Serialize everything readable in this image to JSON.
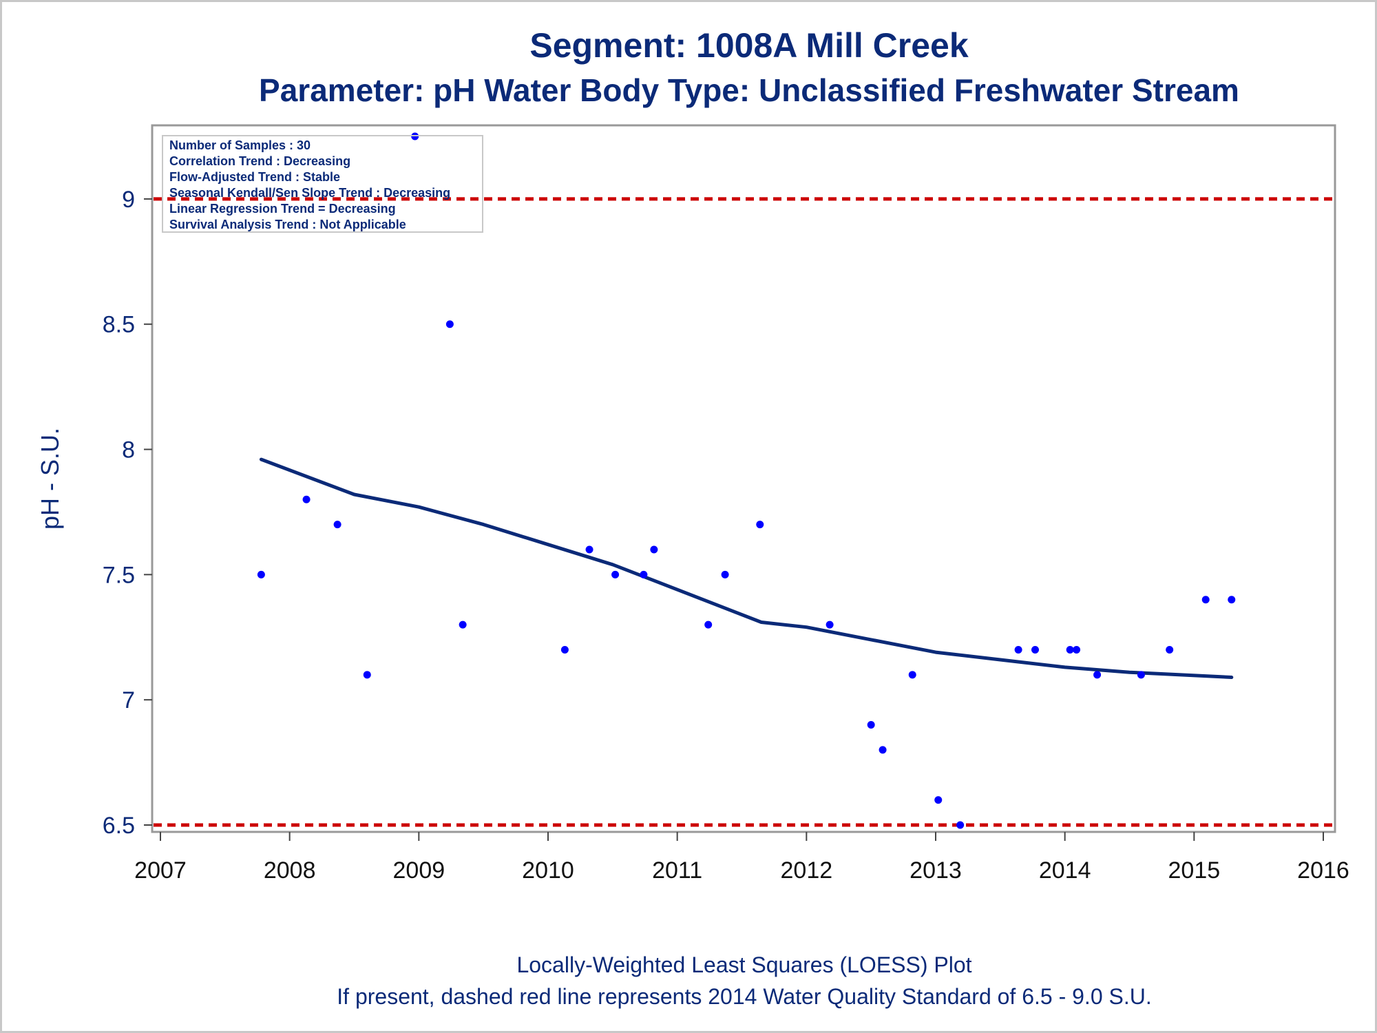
{
  "chart_data": {
    "type": "scatter",
    "title": "Segment: 1008A  Mill Creek",
    "subtitle": "Parameter: pH   Water Body Type: Unclassified Freshwater Stream",
    "xlabel": "",
    "ylabel": "pH - S.U.",
    "xlim": [
      2007,
      2016
    ],
    "ylim": [
      6.5,
      9.25
    ],
    "xticks": [
      "2007",
      "2008",
      "2009",
      "2010",
      "2011",
      "2012",
      "2013",
      "2014",
      "2015",
      "2016"
    ],
    "yticks": [
      "6.5",
      "7",
      "7.5",
      "8",
      "8.5",
      "9"
    ],
    "grid": false,
    "colors": {
      "points": "#0000ff",
      "loess": "#0b2a78",
      "standard": "#cc0000",
      "text": "#0b2a78"
    },
    "standards": [
      6.5,
      9.0
    ],
    "points": [
      {
        "x": 2007.78,
        "y": 7.5
      },
      {
        "x": 2008.13,
        "y": 7.8
      },
      {
        "x": 2008.37,
        "y": 7.7
      },
      {
        "x": 2008.6,
        "y": 7.1
      },
      {
        "x": 2008.97,
        "y": 9.25
      },
      {
        "x": 2009.24,
        "y": 8.5
      },
      {
        "x": 2009.34,
        "y": 7.3
      },
      {
        "x": 2010.13,
        "y": 7.2
      },
      {
        "x": 2010.32,
        "y": 7.6
      },
      {
        "x": 2010.52,
        "y": 7.5
      },
      {
        "x": 2010.74,
        "y": 7.5
      },
      {
        "x": 2010.82,
        "y": 7.6
      },
      {
        "x": 2011.24,
        "y": 7.3
      },
      {
        "x": 2011.37,
        "y": 7.5
      },
      {
        "x": 2011.64,
        "y": 7.7
      },
      {
        "x": 2012.18,
        "y": 7.3
      },
      {
        "x": 2012.5,
        "y": 6.9
      },
      {
        "x": 2012.59,
        "y": 6.8
      },
      {
        "x": 2012.82,
        "y": 7.1
      },
      {
        "x": 2013.02,
        "y": 6.6
      },
      {
        "x": 2013.19,
        "y": 6.5
      },
      {
        "x": 2013.64,
        "y": 7.2
      },
      {
        "x": 2013.77,
        "y": 7.2
      },
      {
        "x": 2014.04,
        "y": 7.2
      },
      {
        "x": 2014.09,
        "y": 7.2
      },
      {
        "x": 2014.25,
        "y": 7.1
      },
      {
        "x": 2014.59,
        "y": 7.1
      },
      {
        "x": 2014.81,
        "y": 7.2
      },
      {
        "x": 2015.09,
        "y": 7.4
      },
      {
        "x": 2015.29,
        "y": 7.4
      }
    ],
    "loess": [
      {
        "x": 2007.78,
        "y": 7.96
      },
      {
        "x": 2008.5,
        "y": 7.82
      },
      {
        "x": 2009.0,
        "y": 7.77
      },
      {
        "x": 2009.5,
        "y": 7.7
      },
      {
        "x": 2010.0,
        "y": 7.62
      },
      {
        "x": 2010.5,
        "y": 7.54
      },
      {
        "x": 2010.8,
        "y": 7.48
      },
      {
        "x": 2011.2,
        "y": 7.4
      },
      {
        "x": 2011.65,
        "y": 7.31
      },
      {
        "x": 2012.0,
        "y": 7.29
      },
      {
        "x": 2012.5,
        "y": 7.24
      },
      {
        "x": 2013.0,
        "y": 7.19
      },
      {
        "x": 2013.5,
        "y": 7.16
      },
      {
        "x": 2014.0,
        "y": 7.13
      },
      {
        "x": 2014.5,
        "y": 7.11
      },
      {
        "x": 2015.29,
        "y": 7.09
      }
    ],
    "annotations": [
      "Number of Samples : 30",
      "Correlation Trend : Decreasing",
      "Flow-Adjusted Trend : Stable",
      "Seasonal Kendall/Sen Slope Trend : Decreasing",
      "Linear Regression Trend = Decreasing",
      "Survival Analysis Trend : Not Applicable"
    ],
    "footnotes": [
      "Locally-Weighted Least Squares (LOESS) Plot",
      "If present, dashed red line represents 2014 Water Quality Standard of 6.5 - 9.0 S.U."
    ]
  }
}
